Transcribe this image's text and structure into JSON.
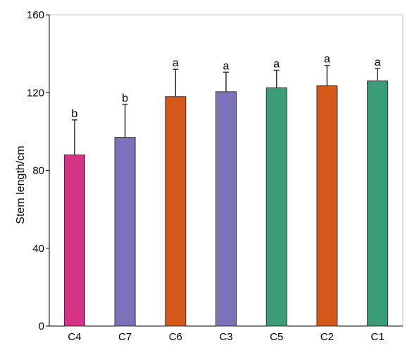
{
  "chart_data": {
    "type": "bar",
    "title": "",
    "xlabel": "",
    "ylabel": "Stem length/cm",
    "ylim": [
      0,
      160
    ],
    "yticks": [
      0,
      40,
      80,
      120,
      160
    ],
    "grid": false,
    "categories": [
      "C4",
      "C7",
      "C6",
      "C3",
      "C5",
      "C2",
      "C1"
    ],
    "values": [
      88,
      97,
      118,
      120.5,
      122.5,
      123.5,
      126
    ],
    "errors": [
      18,
      17,
      14,
      10,
      9,
      10.5,
      6.5
    ],
    "significance": [
      "b",
      "b",
      "a",
      "a",
      "a",
      "a",
      "a"
    ],
    "colors": [
      "#d63384",
      "#7b73b9",
      "#d4581a",
      "#7b73b9",
      "#3b9d77",
      "#d4581a",
      "#3b9d77"
    ]
  }
}
